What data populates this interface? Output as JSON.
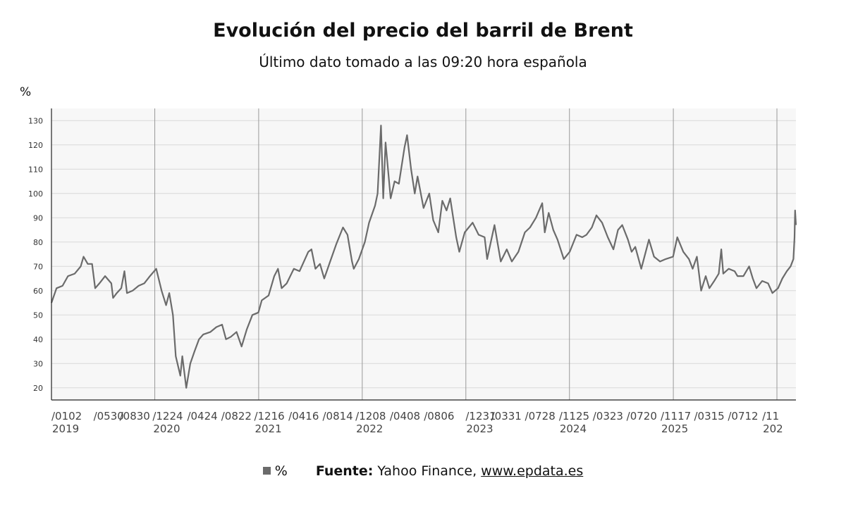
{
  "chart_data": {
    "type": "line",
    "title": "Evolución del precio del barril de Brent",
    "subtitle": "Último dato tomado a las 09:20 hora española",
    "ylabel": "%",
    "ylim": [
      15,
      135
    ],
    "yticks": [
      20,
      30,
      40,
      50,
      60,
      70,
      80,
      90,
      100,
      110,
      120,
      130
    ],
    "xlim": [
      "2019-01-02",
      "2026-03-09"
    ],
    "year_lines": [
      "2020-01-01",
      "2021-01-01",
      "2022-01-01",
      "2023-01-01",
      "2024-01-01",
      "2025-01-01",
      "2026-01-01"
    ],
    "x_tick_labels": [
      {
        "x": "2019-01-02",
        "top": "/0102",
        "bottom": "2019"
      },
      {
        "x": "2019-05-30",
        "top": "/0530",
        "bottom": ""
      },
      {
        "x": "2019-08-30",
        "top": "/0830",
        "bottom": ""
      },
      {
        "x": "2019-12-24",
        "top": "/1224",
        "bottom": "2020"
      },
      {
        "x": "2020-04-24",
        "top": "/0424",
        "bottom": ""
      },
      {
        "x": "2020-08-22",
        "top": "/0822",
        "bottom": ""
      },
      {
        "x": "2020-12-16",
        "top": "/1216",
        "bottom": "2021"
      },
      {
        "x": "2021-04-16",
        "top": "/0416",
        "bottom": ""
      },
      {
        "x": "2021-08-14",
        "top": "/0814",
        "bottom": ""
      },
      {
        "x": "2021-12-08",
        "top": "/1208",
        "bottom": "2022"
      },
      {
        "x": "2022-04-08",
        "top": "/0408",
        "bottom": ""
      },
      {
        "x": "2022-08-06",
        "top": "/0806",
        "bottom": ""
      },
      {
        "x": "2022-12-31",
        "top": "/1231",
        "bottom": "2023"
      },
      {
        "x": "2023-03-31",
        "top": "/0331",
        "bottom": ""
      },
      {
        "x": "2023-07-28",
        "top": "/0728",
        "bottom": ""
      },
      {
        "x": "2023-11-25",
        "top": "/1125",
        "bottom": "2024"
      },
      {
        "x": "2024-03-23",
        "top": "/0323",
        "bottom": ""
      },
      {
        "x": "2024-07-20",
        "top": "/0720",
        "bottom": ""
      },
      {
        "x": "2024-11-17",
        "top": "/1117",
        "bottom": "2025"
      },
      {
        "x": "2025-03-15",
        "top": "/0315",
        "bottom": ""
      },
      {
        "x": "2025-07-12",
        "top": "/0712",
        "bottom": ""
      },
      {
        "x": "2025-11-10",
        "top": "/11",
        "bottom": "202"
      }
    ],
    "series": [
      {
        "name": "%",
        "color": "#6b6b6b",
        "points": [
          [
            "2019-01-02",
            55
          ],
          [
            "2019-01-20",
            61
          ],
          [
            "2019-02-10",
            62
          ],
          [
            "2019-03-01",
            66
          ],
          [
            "2019-03-25",
            67
          ],
          [
            "2019-04-15",
            70
          ],
          [
            "2019-04-25",
            74
          ],
          [
            "2019-05-10",
            71
          ],
          [
            "2019-05-25",
            71
          ],
          [
            "2019-06-05",
            61
          ],
          [
            "2019-06-20",
            63
          ],
          [
            "2019-07-10",
            66
          ],
          [
            "2019-08-01",
            63
          ],
          [
            "2019-08-07",
            57
          ],
          [
            "2019-08-20",
            59
          ],
          [
            "2019-09-05",
            61
          ],
          [
            "2019-09-16",
            68
          ],
          [
            "2019-09-25",
            59
          ],
          [
            "2019-10-15",
            60
          ],
          [
            "2019-11-05",
            62
          ],
          [
            "2019-11-25",
            63
          ],
          [
            "2019-12-15",
            66
          ],
          [
            "2020-01-06",
            69
          ],
          [
            "2020-01-25",
            60
          ],
          [
            "2020-02-10",
            54
          ],
          [
            "2020-02-21",
            59
          ],
          [
            "2020-03-05",
            50
          ],
          [
            "2020-03-15",
            33
          ],
          [
            "2020-03-31",
            25
          ],
          [
            "2020-04-07",
            33
          ],
          [
            "2020-04-21",
            20
          ],
          [
            "2020-05-05",
            30
          ],
          [
            "2020-05-20",
            35
          ],
          [
            "2020-06-05",
            40
          ],
          [
            "2020-06-20",
            42
          ],
          [
            "2020-07-15",
            43
          ],
          [
            "2020-08-05",
            45
          ],
          [
            "2020-08-25",
            46
          ],
          [
            "2020-09-08",
            40
          ],
          [
            "2020-09-25",
            41
          ],
          [
            "2020-10-15",
            43
          ],
          [
            "2020-11-02",
            37
          ],
          [
            "2020-11-20",
            44
          ],
          [
            "2020-12-10",
            50
          ],
          [
            "2020-12-31",
            51
          ],
          [
            "2021-01-12",
            56
          ],
          [
            "2021-02-05",
            58
          ],
          [
            "2021-02-25",
            66
          ],
          [
            "2021-03-10",
            69
          ],
          [
            "2021-03-23",
            61
          ],
          [
            "2021-04-10",
            63
          ],
          [
            "2021-05-05",
            69
          ],
          [
            "2021-05-25",
            68
          ],
          [
            "2021-06-25",
            76
          ],
          [
            "2021-07-06",
            77
          ],
          [
            "2021-07-20",
            69
          ],
          [
            "2021-08-05",
            71
          ],
          [
            "2021-08-20",
            65
          ],
          [
            "2021-09-10",
            72
          ],
          [
            "2021-10-01",
            79
          ],
          [
            "2021-10-25",
            86
          ],
          [
            "2021-11-10",
            83
          ],
          [
            "2021-11-26",
            72
          ],
          [
            "2021-12-02",
            69
          ],
          [
            "2021-12-20",
            73
          ],
          [
            "2022-01-10",
            80
          ],
          [
            "2022-01-25",
            88
          ],
          [
            "2022-02-15",
            95
          ],
          [
            "2022-02-24",
            100
          ],
          [
            "2022-03-08",
            128
          ],
          [
            "2022-03-16",
            98
          ],
          [
            "2022-03-24",
            121
          ],
          [
            "2022-04-11",
            98
          ],
          [
            "2022-04-25",
            105
          ],
          [
            "2022-05-10",
            104
          ],
          [
            "2022-05-30",
            119
          ],
          [
            "2022-06-08",
            124
          ],
          [
            "2022-06-22",
            110
          ],
          [
            "2022-07-05",
            100
          ],
          [
            "2022-07-15",
            107
          ],
          [
            "2022-08-05",
            94
          ],
          [
            "2022-08-25",
            100
          ],
          [
            "2022-09-08",
            89
          ],
          [
            "2022-09-26",
            84
          ],
          [
            "2022-10-10",
            97
          ],
          [
            "2022-10-25",
            93
          ],
          [
            "2022-11-07",
            98
          ],
          [
            "2022-11-28",
            82
          ],
          [
            "2022-12-09",
            76
          ],
          [
            "2022-12-28",
            84
          ],
          [
            "2023-01-25",
            88
          ],
          [
            "2023-02-15",
            83
          ],
          [
            "2023-03-08",
            82
          ],
          [
            "2023-03-17",
            73
          ],
          [
            "2023-04-12",
            87
          ],
          [
            "2023-05-04",
            72
          ],
          [
            "2023-05-25",
            77
          ],
          [
            "2023-06-12",
            72
          ],
          [
            "2023-07-05",
            76
          ],
          [
            "2023-07-28",
            84
          ],
          [
            "2023-08-15",
            86
          ],
          [
            "2023-09-05",
            90
          ],
          [
            "2023-09-27",
            96
          ],
          [
            "2023-10-06",
            84
          ],
          [
            "2023-10-20",
            92
          ],
          [
            "2023-11-05",
            85
          ],
          [
            "2023-11-20",
            81
          ],
          [
            "2023-12-12",
            73
          ],
          [
            "2024-01-02",
            76
          ],
          [
            "2024-01-26",
            83
          ],
          [
            "2024-02-15",
            82
          ],
          [
            "2024-03-01",
            83
          ],
          [
            "2024-03-20",
            86
          ],
          [
            "2024-04-05",
            91
          ],
          [
            "2024-04-25",
            88
          ],
          [
            "2024-05-15",
            82
          ],
          [
            "2024-06-04",
            77
          ],
          [
            "2024-06-20",
            85
          ],
          [
            "2024-07-05",
            87
          ],
          [
            "2024-07-25",
            81
          ],
          [
            "2024-08-07",
            76
          ],
          [
            "2024-08-20",
            78
          ],
          [
            "2024-09-10",
            69
          ],
          [
            "2024-10-07",
            81
          ],
          [
            "2024-10-25",
            74
          ],
          [
            "2024-11-15",
            72
          ],
          [
            "2024-12-05",
            73
          ],
          [
            "2024-12-31",
            74
          ],
          [
            "2025-01-15",
            82
          ],
          [
            "2025-02-05",
            76
          ],
          [
            "2025-02-25",
            73
          ],
          [
            "2025-03-10",
            69
          ],
          [
            "2025-03-25",
            74
          ],
          [
            "2025-04-09",
            60
          ],
          [
            "2025-04-25",
            66
          ],
          [
            "2025-05-08",
            61
          ],
          [
            "2025-05-25",
            64
          ],
          [
            "2025-06-10",
            67
          ],
          [
            "2025-06-19",
            77
          ],
          [
            "2025-06-26",
            67
          ],
          [
            "2025-07-15",
            69
          ],
          [
            "2025-08-05",
            68
          ],
          [
            "2025-08-15",
            66
          ],
          [
            "2025-09-05",
            66
          ],
          [
            "2025-09-25",
            70
          ],
          [
            "2025-10-08",
            65
          ],
          [
            "2025-10-21",
            61
          ],
          [
            "2025-11-10",
            64
          ],
          [
            "2025-12-01",
            63
          ],
          [
            "2025-12-16",
            59
          ],
          [
            "2026-01-05",
            61
          ],
          [
            "2026-01-20",
            65
          ],
          [
            "2026-02-05",
            68
          ],
          [
            "2026-02-18",
            70
          ],
          [
            "2026-02-28",
            73
          ],
          [
            "2026-03-04",
            82
          ],
          [
            "2026-03-06",
            93
          ],
          [
            "2026-03-09",
            87
          ]
        ]
      }
    ]
  },
  "legend": {
    "label": "%"
  },
  "footer": {
    "source_label": "Fuente:",
    "source_text": "Yahoo Finance,",
    "link_text": "www.epdata.es"
  }
}
